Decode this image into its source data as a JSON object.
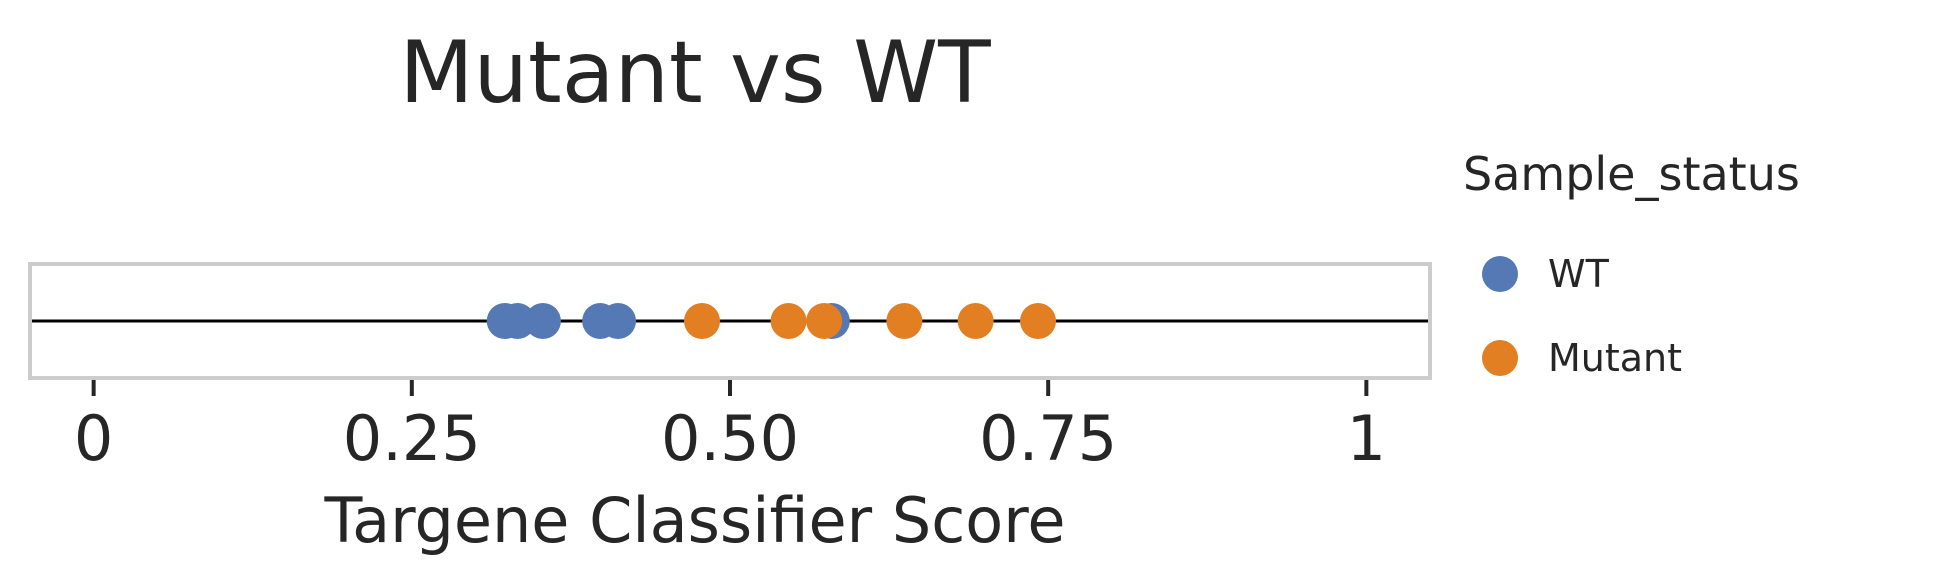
{
  "chart_data": {
    "type": "scatter",
    "title": "Mutant vs WT",
    "xlabel": "Targene Classifier Score",
    "ylabel": "",
    "xlim": [
      -0.05,
      1.05
    ],
    "xticks": [
      0,
      0.25,
      0.5,
      0.75,
      1
    ],
    "xtick_labels": [
      "0",
      "0.25",
      "0.50",
      "0.75",
      "1"
    ],
    "legend": {
      "title": "Sample_status",
      "placement": "right"
    },
    "colors": {
      "WT": "#5579b5",
      "Mutant": "#e17f22"
    },
    "series": [
      {
        "name": "WT",
        "x": [
          0.323,
          0.333,
          0.353,
          0.398,
          0.412,
          0.58
        ]
      },
      {
        "name": "Mutant",
        "x": [
          0.478,
          0.546,
          0.574,
          0.637,
          0.693,
          0.742
        ]
      }
    ]
  }
}
